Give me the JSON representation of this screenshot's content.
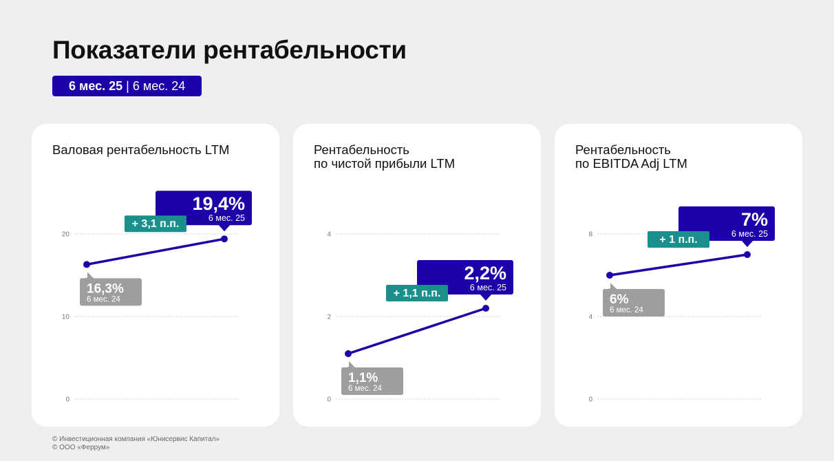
{
  "page": {
    "title": "Показатели рентабельности",
    "period_current": "6 мес. 25",
    "period_separator": "|",
    "period_previous": "6 мес. 24"
  },
  "colors": {
    "accent": "#1e00a8",
    "delta": "#1a8f8c",
    "previous": "#9e9e9e",
    "grid": "#cfcfcf"
  },
  "footer": {
    "line1": "© Инвестиционная компания «Юнисервис Капитал»",
    "line2": "© ООО «Феррум»"
  },
  "chart_data": [
    {
      "type": "line",
      "title_lines": [
        "Валовая рентабельность LTM"
      ],
      "yticks": [
        0,
        10,
        20
      ],
      "ylim": [
        0,
        20
      ],
      "grid": true,
      "points": [
        {
          "period": "6 мес. 24",
          "value": 16.3,
          "label": "16,3%"
        },
        {
          "period": "6 мес. 25",
          "value": 19.4,
          "label": "19,4%"
        }
      ],
      "delta_label": "+ 3,1 п.п."
    },
    {
      "type": "line",
      "title_lines": [
        "Рентабельность",
        "по чистой прибыли LTM"
      ],
      "yticks": [
        0,
        2,
        4
      ],
      "ylim": [
        0,
        4
      ],
      "grid": true,
      "points": [
        {
          "period": "6 мес. 24",
          "value": 1.1,
          "label": "1,1%"
        },
        {
          "period": "6 мес. 25",
          "value": 2.2,
          "label": "2,2%"
        }
      ],
      "delta_label": "+ 1,1 п.п."
    },
    {
      "type": "line",
      "title_lines": [
        "Рентабельность",
        "по EBITDA Adj LTM"
      ],
      "yticks": [
        0,
        4,
        8
      ],
      "ylim": [
        0,
        8
      ],
      "grid": true,
      "points": [
        {
          "period": "6 мес. 24",
          "value": 6,
          "label": "6%"
        },
        {
          "period": "6 мес. 25",
          "value": 7,
          "label": "7%"
        }
      ],
      "delta_label": "+ 1 п.п."
    }
  ]
}
